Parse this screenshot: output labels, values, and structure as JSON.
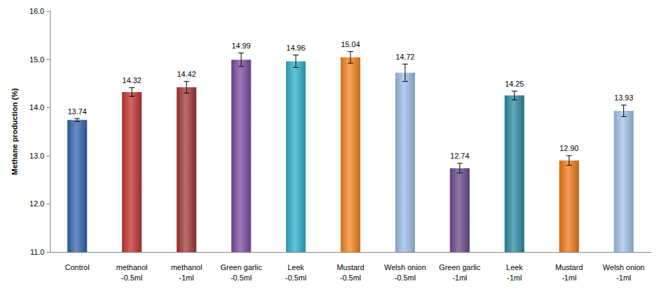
{
  "chart_data": {
    "type": "bar",
    "y_label": "Methane production (%)",
    "categories": [
      "Control",
      "methanol\n-0.5ml",
      "methanol\n-1ml",
      "Green garlic\n-0.5ml",
      "Leek\n-0.5ml",
      "Mustard\n-0.5ml",
      "Welsh onion\n-0.5ml",
      "Green garlic\n-1ml",
      "Leek\n-1ml",
      "Mustard\n-1ml",
      "Welsh onion\n-1ml"
    ],
    "values": [
      13.74,
      14.32,
      14.42,
      14.99,
      14.96,
      15.04,
      14.72,
      12.74,
      14.25,
      12.9,
      13.93
    ],
    "value_labels": [
      "13.74",
      "14.32",
      "14.42",
      "14.99",
      "14.96",
      "15.04",
      "14.72",
      "12.74",
      "14.25",
      "12.90",
      "13.93"
    ],
    "errors": [
      0.03,
      0.09,
      0.12,
      0.14,
      0.13,
      0.12,
      0.18,
      0.1,
      0.09,
      0.1,
      0.12
    ],
    "colors": [
      "#3566ab",
      "#c3342f",
      "#a23a38",
      "#7b4ea3",
      "#2fb0cc",
      "#f5841f",
      "#9fbfe8",
      "#6c4b8e",
      "#2e8ca3",
      "#f07a18",
      "#a6c3ea"
    ],
    "ylim": [
      11,
      16
    ],
    "yticks": [
      {
        "value": 11,
        "label": "11.0"
      },
      {
        "value": 12,
        "label": "12.0"
      },
      {
        "value": 13,
        "label": "13.0"
      },
      {
        "value": 14,
        "label": "14.0"
      },
      {
        "value": 15,
        "label": "15.0"
      },
      {
        "value": 16,
        "label": "16.0"
      }
    ],
    "grid": false,
    "data_labels": true
  }
}
